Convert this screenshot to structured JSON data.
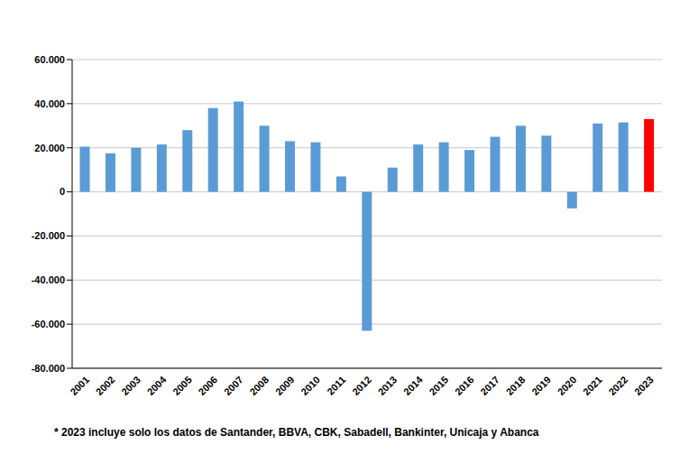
{
  "chart_data": {
    "type": "bar",
    "categories": [
      "2001",
      "2002",
      "2003",
      "2004",
      "2005",
      "2006",
      "2007",
      "2008",
      "2009",
      "2010",
      "2011",
      "2012",
      "2013",
      "2014",
      "2015",
      "2016",
      "2017",
      "2018",
      "2019",
      "2020",
      "2021",
      "2022",
      "2023"
    ],
    "values": [
      20500,
      17500,
      20000,
      21500,
      28000,
      38000,
      41000,
      30000,
      23000,
      22500,
      7000,
      -63000,
      11000,
      21500,
      22500,
      19000,
      25000,
      30000,
      25500,
      -7500,
      31000,
      31500,
      33000
    ],
    "colors": [
      "#5b9bd5",
      "#5b9bd5",
      "#5b9bd5",
      "#5b9bd5",
      "#5b9bd5",
      "#5b9bd5",
      "#5b9bd5",
      "#5b9bd5",
      "#5b9bd5",
      "#5b9bd5",
      "#5b9bd5",
      "#5b9bd5",
      "#5b9bd5",
      "#5b9bd5",
      "#5b9bd5",
      "#5b9bd5",
      "#5b9bd5",
      "#5b9bd5",
      "#5b9bd5",
      "#5b9bd5",
      "#5b9bd5",
      "#5b9bd5",
      "#ff0000"
    ],
    "ylim": [
      -80000,
      60000
    ],
    "yticks": [
      {
        "value": -80000,
        "label": "-80.000"
      },
      {
        "value": -60000,
        "label": "-60.000"
      },
      {
        "value": -40000,
        "label": "-40.000"
      },
      {
        "value": -20000,
        "label": "-20.000"
      },
      0,
      {
        "value": 20000,
        "label": "20.000"
      },
      {
        "value": 40000,
        "label": "40.000"
      },
      {
        "value": 60000,
        "label": "60.000"
      }
    ],
    "grid": true,
    "annotations": [
      "* 2023 incluye solo los datos de Santander, BBVA, CBK, Sabadell, Bankinter, Unicaja y Abanca"
    ]
  }
}
